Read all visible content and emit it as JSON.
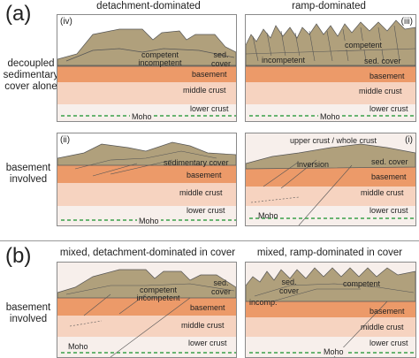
{
  "section_a": {
    "label": "(a)",
    "col_left_title": "detachment-dominated",
    "col_right_title": "ramp-dominated",
    "row1_label": [
      "decoupled",
      "sedimentary",
      "cover alone"
    ],
    "row2_label": [
      "basement",
      "involved"
    ],
    "panel_iv": {
      "roman": "(iv)",
      "competent": "competent",
      "incompetent": "incompetent",
      "sed_cover": [
        "sed.",
        "cover"
      ],
      "basement": "basement",
      "middle_crust": "middle crust",
      "lower_crust": "lower crust",
      "moho": "Moho"
    },
    "panel_iii": {
      "roman": "(iii)",
      "competent": "competent",
      "incompetent": "incompetent",
      "sed_cover": "sed. cover",
      "basement": "basement",
      "middle_crust": "middle crust",
      "lower_crust": "lower crust",
      "moho": "Moho"
    },
    "panel_ii": {
      "roman": "(ii)",
      "sedimentary_cover": "sedimentary cover",
      "basement": "basement",
      "middle_crust": "middle crust",
      "lower_crust": "lower crust",
      "moho": "Moho"
    },
    "panel_i": {
      "roman": "(i)",
      "upper_crust": "upper crust / whole crust",
      "inversion": "inversion",
      "sed_cover": "sed. cover",
      "basement": "basement",
      "middle_crust": "middle crust",
      "lower_crust": "lower crust",
      "moho": "Moho"
    }
  },
  "section_b": {
    "label": "(b)",
    "col_left_title": "mixed, detachment-dominated in cover",
    "col_right_title": "mixed, ramp-dominated in cover",
    "row_label": [
      "basement",
      "involved"
    ],
    "panel_left": {
      "competent": "competent",
      "incompetent": "incompetent",
      "sed_cover": [
        "sed.",
        "cover"
      ],
      "basement": "basement",
      "middle_crust": "middle crust",
      "lower_crust": "lower crust",
      "moho": "Moho"
    },
    "panel_right": {
      "sed_cover": [
        "sed.",
        "cover"
      ],
      "competent": "competent",
      "incomp": "incomp.",
      "basement": "basement",
      "middle_crust": "middle crust",
      "lower_crust": "lower crust",
      "moho": "Moho"
    }
  },
  "colors": {
    "cover": "#b0a07c",
    "cover_dark": "#8f7f5c",
    "basement": "#ec9a69",
    "middle_crust": "#f6d3c0",
    "lower_crust": "#f7efeb",
    "moho": "#3aa04a",
    "outline": "#555555"
  }
}
